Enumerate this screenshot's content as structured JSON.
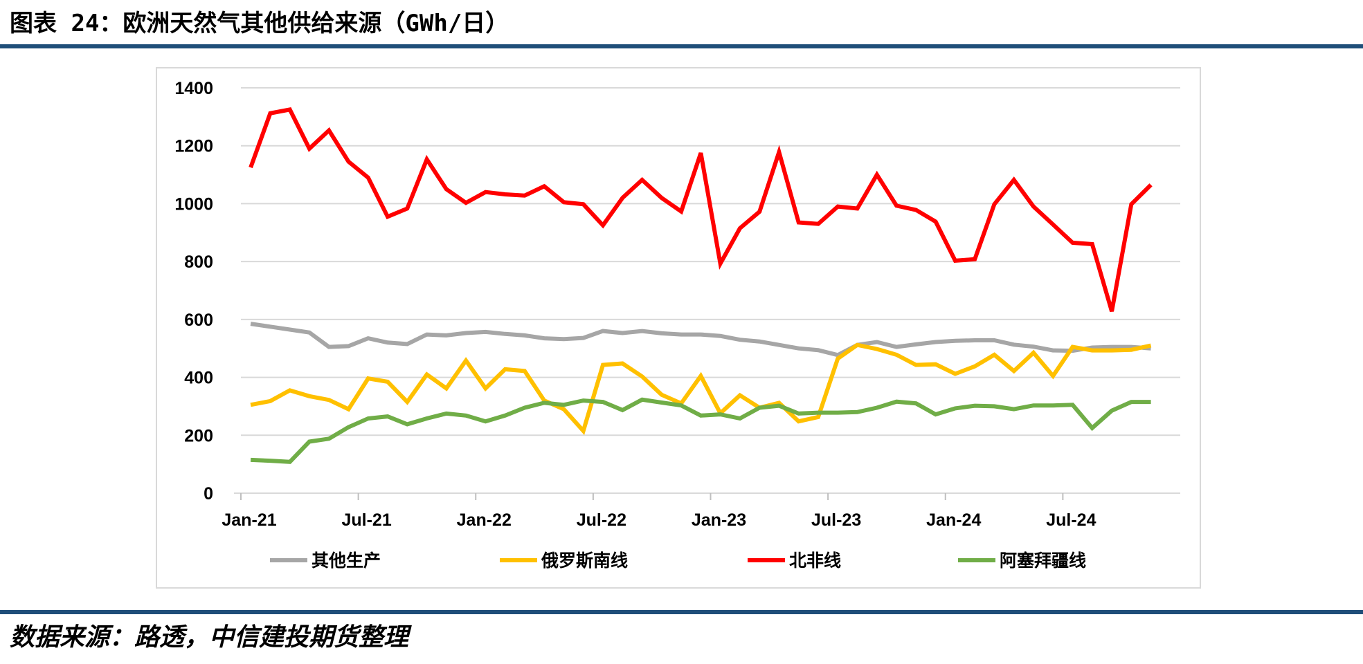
{
  "header": {
    "title": "图表 24：欧洲天然气其他供给来源（GWh/日）"
  },
  "footer": {
    "source": "数据来源：路透，中信建投期货整理"
  },
  "colors": {
    "rule": "#1f4e79",
    "gridline": "#d9d9d9"
  },
  "chart_data": {
    "type": "line",
    "title": "",
    "xlabel": "",
    "ylabel": "",
    "ylim": [
      0,
      1400
    ],
    "y_ticks": [
      "0",
      "200",
      "400",
      "600",
      "800",
      "1000",
      "1200",
      "1400"
    ],
    "grid": true,
    "legend_position": "bottom",
    "x": [
      "2021-01",
      "2021-02",
      "2021-03",
      "2021-04",
      "2021-05",
      "2021-06",
      "2021-07",
      "2021-08",
      "2021-09",
      "2021-10",
      "2021-11",
      "2021-12",
      "2022-01",
      "2022-02",
      "2022-03",
      "2022-04",
      "2022-05",
      "2022-06",
      "2022-07",
      "2022-08",
      "2022-09",
      "2022-10",
      "2022-11",
      "2022-12",
      "2023-01",
      "2023-02",
      "2023-03",
      "2023-04",
      "2023-05",
      "2023-06",
      "2023-07",
      "2023-08",
      "2023-09",
      "2023-10",
      "2023-11",
      "2023-12",
      "2024-01",
      "2024-02",
      "2024-03",
      "2024-04",
      "2024-05",
      "2024-06",
      "2024-07",
      "2024-08",
      "2024-09",
      "2024-10",
      "2024-11",
      "2024-12"
    ],
    "x_tick_labels": [
      {
        "index": 0,
        "label": "Jan-21"
      },
      {
        "index": 6,
        "label": "Jul-21"
      },
      {
        "index": 12,
        "label": "Jan-22"
      },
      {
        "index": 18,
        "label": "Jul-22"
      },
      {
        "index": 24,
        "label": "Jan-23"
      },
      {
        "index": 30,
        "label": "Jul-23"
      },
      {
        "index": 36,
        "label": "Jan-24"
      },
      {
        "index": 42,
        "label": "Jul-24"
      }
    ],
    "series": [
      {
        "name": "其他生产",
        "color": "#a6a6a6",
        "values": [
          585,
          575,
          565,
          555,
          505,
          508,
          535,
          520,
          515,
          548,
          545,
          553,
          557,
          550,
          545,
          535,
          532,
          536,
          560,
          553,
          560,
          552,
          548,
          548,
          543,
          530,
          524,
          512,
          500,
          494,
          477,
          512,
          522,
          505,
          514,
          522,
          526,
          528,
          528,
          513,
          506,
          493,
          492,
          503,
          505,
          505,
          500,
          null
        ]
      },
      {
        "name": "俄罗斯南线",
        "color": "#ffc000",
        "values": [
          305,
          318,
          355,
          335,
          322,
          290,
          396,
          385,
          315,
          410,
          362,
          458,
          362,
          428,
          422,
          320,
          290,
          215,
          443,
          448,
          403,
          340,
          310,
          405,
          276,
          338,
          295,
          312,
          248,
          263,
          465,
          512,
          498,
          478,
          443,
          445,
          412,
          438,
          478,
          422,
          485,
          405,
          505,
          493,
          493,
          495,
          510,
          null
        ]
      },
      {
        "name": "北非线",
        "color": "#ff0000",
        "values": [
          1125,
          1312,
          1325,
          1190,
          1253,
          1145,
          1090,
          955,
          983,
          1153,
          1050,
          1003,
          1040,
          1032,
          1028,
          1060,
          1005,
          998,
          925,
          1020,
          1082,
          1020,
          973,
          1175,
          793,
          915,
          972,
          1178,
          935,
          930,
          990,
          983,
          1100,
          993,
          978,
          938,
          803,
          808,
          998,
          1082,
          990,
          928,
          865,
          860,
          628,
          998,
          1065,
          null
        ]
      },
      {
        "name": "阿塞拜疆线",
        "color": "#70ad47",
        "values": [
          115,
          112,
          108,
          178,
          188,
          228,
          258,
          265,
          238,
          258,
          275,
          268,
          248,
          268,
          295,
          312,
          305,
          320,
          315,
          287,
          323,
          313,
          303,
          268,
          272,
          258,
          295,
          302,
          275,
          278,
          278,
          280,
          295,
          316,
          310,
          272,
          293,
          302,
          300,
          290,
          303,
          303,
          305,
          225,
          285,
          315,
          315,
          null
        ]
      }
    ]
  }
}
